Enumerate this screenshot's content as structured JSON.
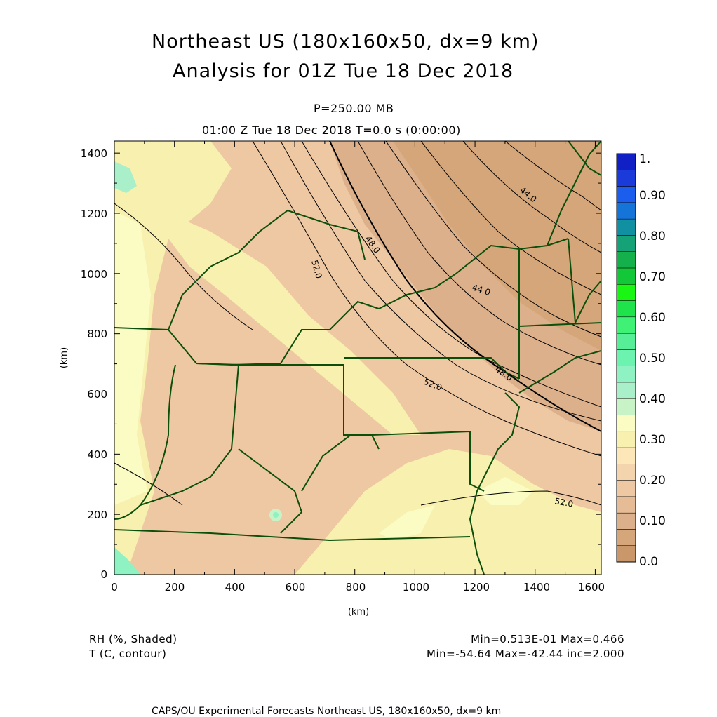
{
  "header": {
    "title_line1": "Northeast US (180x160x50, dx=9 km)",
    "title_line2": "Analysis for 01Z Tue 18 Dec 2018",
    "level": "P=250.00 MB",
    "time": "01:00 Z Tue 18 Dec 2018    T=0.0 s (0:00:00)"
  },
  "axes": {
    "x_label": "(km)",
    "y_label": "(km)",
    "x_ticks": [
      "0",
      "200",
      "400",
      "600",
      "800",
      "1000",
      "1200",
      "1400",
      "1600"
    ],
    "y_ticks": [
      "0",
      "200",
      "400",
      "600",
      "800",
      "1000",
      "1200",
      "1400"
    ]
  },
  "colorbar": {
    "labels": [
      "1.",
      "0.90",
      "0.80",
      "0.70",
      "0.60",
      "0.50",
      "0.40",
      "0.30",
      "0.20",
      "0.10",
      "0.0"
    ],
    "colors": [
      "#c9976a",
      "#d4a67a",
      "#dcb08a",
      "#e6bc96",
      "#eec8a2",
      "#f4d4ac",
      "#fde6b8",
      "#f8f0ae",
      "#fafcc4",
      "#c8f3c6",
      "#a9efc9",
      "#8ef2c2",
      "#6df3b0",
      "#56ee96",
      "#3ff276",
      "#1fe34a",
      "#1af614",
      "#12c838",
      "#14b04c",
      "#15a277",
      "#1190a2",
      "#1574d8",
      "#1b5eee",
      "#1a3bd9",
      "#1020c4"
    ]
  },
  "contour_labels": [
    "52.0",
    "48.0",
    "44.0",
    "48.0",
    "44.0",
    "52.0",
    "52.0"
  ],
  "footer": {
    "rh_label": "RH (%, Shaded)",
    "t_label": "T (C, contour)",
    "rh_range": "Min=0.513E-01 Max=0.466",
    "t_range": "Min=-54.64 Max=-42.44 inc=2.000",
    "credit": "CAPS/OU Experimental Forecasts  Northeast US, 180x160x50, dx=9 km"
  }
}
